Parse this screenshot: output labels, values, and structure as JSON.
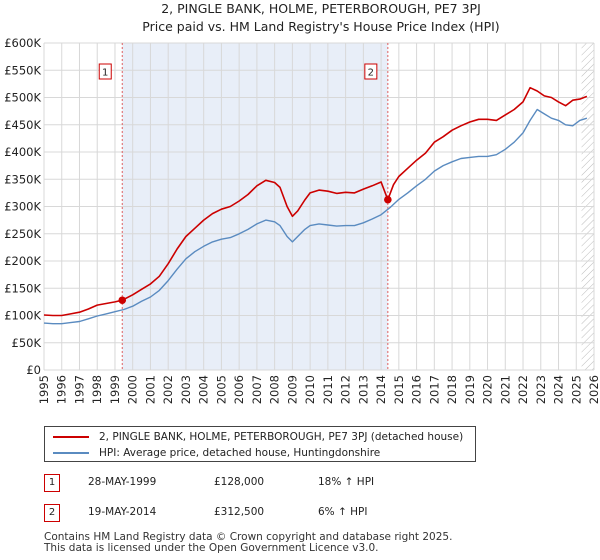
{
  "chart_data": {
    "type": "line",
    "title": "2, PINGLE BANK, HOLME, PETERBOROUGH, PE7 3PJ",
    "subtitle": "Price paid vs. HM Land Registry's House Price Index (HPI)",
    "xlim": [
      1995.0,
      2026.0
    ],
    "ylim": [
      0,
      600000
    ],
    "x_ticks": [
      "1995",
      "1996",
      "1997",
      "1998",
      "1999",
      "2000",
      "2001",
      "2002",
      "2003",
      "2004",
      "2005",
      "2006",
      "2007",
      "2008",
      "2009",
      "2010",
      "2011",
      "2012",
      "2013",
      "2014",
      "2015",
      "2016",
      "2017",
      "2018",
      "2019",
      "2020",
      "2021",
      "2022",
      "2023",
      "2024",
      "2025",
      "2026"
    ],
    "y_ticks": [
      {
        "value": 0,
        "label": "£0"
      },
      {
        "value": 50000,
        "label": "£50K"
      },
      {
        "value": 100000,
        "label": "£100K"
      },
      {
        "value": 150000,
        "label": "£150K"
      },
      {
        "value": 200000,
        "label": "£200K"
      },
      {
        "value": 250000,
        "label": "£250K"
      },
      {
        "value": 300000,
        "label": "£300K"
      },
      {
        "value": 350000,
        "label": "£350K"
      },
      {
        "value": 400000,
        "label": "£400K"
      },
      {
        "value": 450000,
        "label": "£450K"
      },
      {
        "value": 500000,
        "label": "£500K"
      },
      {
        "value": 550000,
        "label": "£550K"
      },
      {
        "value": 600000,
        "label": "£600K"
      }
    ],
    "shaded_period": [
      1999.41,
      2014.38
    ],
    "future_hatch_from": 2025.3,
    "series": [
      {
        "name": "2, PINGLE BANK, HOLME, PETERBOROUGH, PE7 3PJ (detached house)",
        "color": "#cc0000",
        "x": [
          1995.0,
          1995.5,
          1996.0,
          1996.5,
          1997.0,
          1997.5,
          1998.0,
          1998.5,
          1999.0,
          1999.41,
          2000.0,
          2000.5,
          2001.0,
          2001.5,
          2002.0,
          2002.5,
          2003.0,
          2003.5,
          2004.0,
          2004.5,
          2005.0,
          2005.5,
          2006.0,
          2006.5,
          2007.0,
          2007.5,
          2008.0,
          2008.3,
          2008.7,
          2009.0,
          2009.3,
          2009.7,
          2010.0,
          2010.5,
          2011.0,
          2011.5,
          2012.0,
          2012.5,
          2013.0,
          2013.5,
          2014.0,
          2014.38,
          2014.7,
          2015.0,
          2015.5,
          2016.0,
          2016.5,
          2017.0,
          2017.5,
          2018.0,
          2018.5,
          2019.0,
          2019.5,
          2020.0,
          2020.5,
          2021.0,
          2021.5,
          2022.0,
          2022.4,
          2022.8,
          2023.2,
          2023.6,
          2024.0,
          2024.4,
          2024.8,
          2025.2,
          2025.6
        ],
        "values": [
          101000,
          100000,
          100000,
          103000,
          106000,
          112000,
          119000,
          122000,
          125000,
          128000,
          138000,
          148000,
          158000,
          172000,
          195000,
          222000,
          245000,
          260000,
          275000,
          287000,
          295000,
          300000,
          310000,
          322000,
          338000,
          348000,
          344000,
          335000,
          300000,
          282000,
          292000,
          312000,
          325000,
          330000,
          328000,
          324000,
          326000,
          325000,
          332000,
          338000,
          345000,
          312500,
          340000,
          355000,
          370000,
          385000,
          398000,
          418000,
          428000,
          440000,
          448000,
          455000,
          460000,
          460000,
          458000,
          468000,
          478000,
          492000,
          518000,
          512000,
          503000,
          500000,
          492000,
          485000,
          495000,
          497000,
          502000
        ]
      },
      {
        "name": "HPI: Average price, detached house, Huntingdonshire",
        "color": "#5a8bc0",
        "x": [
          1995.0,
          1995.5,
          1996.0,
          1996.5,
          1997.0,
          1997.5,
          1998.0,
          1998.5,
          1999.0,
          1999.5,
          2000.0,
          2000.5,
          2001.0,
          2001.5,
          2002.0,
          2002.5,
          2003.0,
          2003.5,
          2004.0,
          2004.5,
          2005.0,
          2005.5,
          2006.0,
          2006.5,
          2007.0,
          2007.5,
          2008.0,
          2008.3,
          2008.7,
          2009.0,
          2009.3,
          2009.7,
          2010.0,
          2010.5,
          2011.0,
          2011.5,
          2012.0,
          2012.5,
          2013.0,
          2013.5,
          2014.0,
          2014.5,
          2015.0,
          2015.5,
          2016.0,
          2016.5,
          2017.0,
          2017.5,
          2018.0,
          2018.5,
          2019.0,
          2019.5,
          2020.0,
          2020.5,
          2021.0,
          2021.5,
          2022.0,
          2022.4,
          2022.8,
          2023.2,
          2023.6,
          2024.0,
          2024.4,
          2024.8,
          2025.2,
          2025.6
        ],
        "values": [
          86000,
          85000,
          85000,
          87000,
          89000,
          94000,
          99000,
          103000,
          107000,
          111000,
          117000,
          126000,
          134000,
          146000,
          164000,
          185000,
          204000,
          217000,
          227000,
          235000,
          240000,
          243000,
          250000,
          258000,
          268000,
          275000,
          272000,
          265000,
          245000,
          235000,
          245000,
          258000,
          265000,
          268000,
          266000,
          264000,
          265000,
          265000,
          270000,
          277000,
          285000,
          298000,
          313000,
          325000,
          338000,
          350000,
          365000,
          375000,
          382000,
          388000,
          390000,
          392000,
          392000,
          395000,
          405000,
          418000,
          435000,
          458000,
          478000,
          470000,
          462000,
          458000,
          450000,
          448000,
          458000,
          462000
        ]
      }
    ],
    "markers": [
      {
        "label": "1",
        "x": 1999.41,
        "value": 128000
      },
      {
        "label": "2",
        "x": 2014.38,
        "value": 312500
      }
    ]
  },
  "legend": {
    "items": [
      {
        "label": "2, PINGLE BANK, HOLME, PETERBOROUGH, PE7 3PJ (detached house)",
        "color": "#cc0000"
      },
      {
        "label": "HPI: Average price, detached house, Huntingdonshire",
        "color": "#5a8bc0"
      }
    ]
  },
  "sales": [
    {
      "num": "1",
      "date": "28-MAY-1999",
      "price": "£128,000",
      "hpi": "18% ↑ HPI"
    },
    {
      "num": "2",
      "date": "19-MAY-2014",
      "price": "£312,500",
      "hpi": "6% ↑ HPI"
    }
  ],
  "footer": {
    "line1": "Contains HM Land Registry data © Crown copyright and database right 2025.",
    "line2": "This data is licensed under the Open Government Licence v3.0."
  }
}
